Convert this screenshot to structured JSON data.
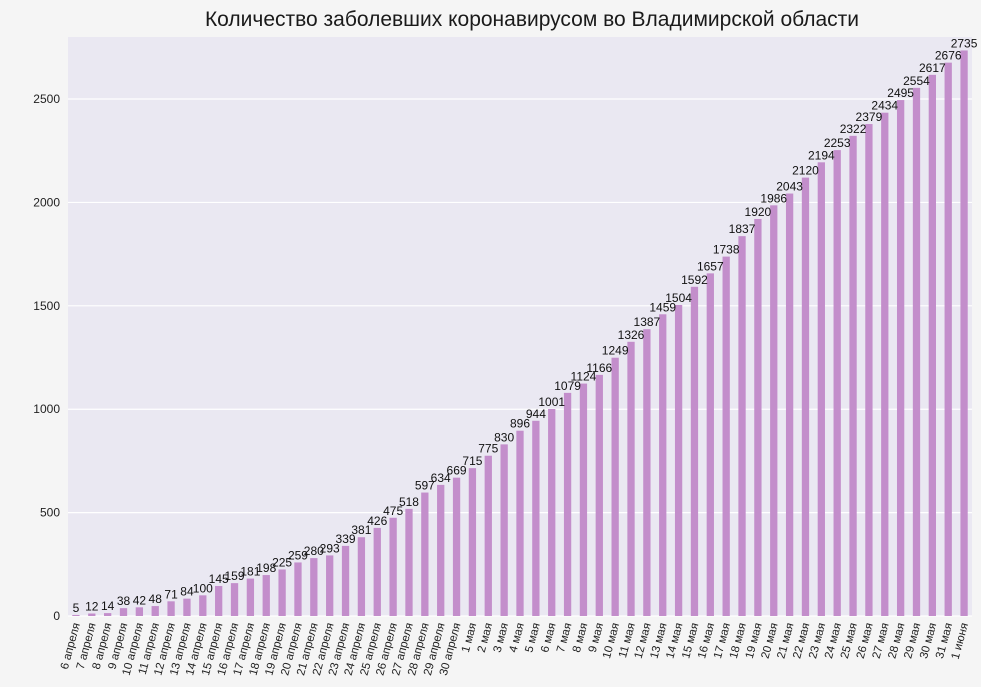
{
  "chart_data": {
    "type": "bar",
    "title": "Количество заболевших коронавирусом во Владимирской области",
    "xlabel": "",
    "ylabel": "",
    "ylim": [
      0,
      2800
    ],
    "yticks": [
      0,
      500,
      1000,
      1500,
      2000,
      2500
    ],
    "grid": true,
    "legend": "none",
    "bar_color": "#c38ecb",
    "background_color": "#eae8f2",
    "categories": [
      "6 апреля",
      "7 апреля",
      "8 апреля",
      "9 апреля",
      "10 апреля",
      "11 апреля",
      "12 апреля",
      "13 апреля",
      "14 апреля",
      "15 апреля",
      "16 апреля",
      "17 апреля",
      "18 апреля",
      "19 апреля",
      "20 апреля",
      "21 апреля",
      "22 апреля",
      "23 апреля",
      "24 апреля",
      "25 апреля",
      "26 апреля",
      "27 апреля",
      "28 апреля",
      "29 апреля",
      "30 апреля",
      "1 мая",
      "2 мая",
      "3 мая",
      "4 мая",
      "5 мая",
      "6 мая",
      "7 мая",
      "8 мая",
      "9 мая",
      "10 мая",
      "11 мая",
      "12 мая",
      "13 мая",
      "14 мая",
      "15 мая",
      "16 мая",
      "17 мая",
      "18 мая",
      "19 мая",
      "20 мая",
      "21 мая",
      "22 мая",
      "23 мая",
      "24 мая",
      "25 мая",
      "26 мая",
      "27 мая",
      "28 мая",
      "29 мая",
      "30 мая",
      "31 мая",
      "1 июня"
    ],
    "values": [
      5,
      12,
      14,
      38,
      42,
      48,
      71,
      84,
      100,
      145,
      159,
      181,
      198,
      225,
      259,
      280,
      293,
      339,
      381,
      426,
      475,
      518,
      597,
      634,
      669,
      715,
      775,
      830,
      896,
      944,
      1001,
      1079,
      1124,
      1166,
      1249,
      1326,
      1387,
      1459,
      1504,
      1592,
      1657,
      1738,
      1837,
      1920,
      1986,
      2043,
      2120,
      2194,
      2253,
      2322,
      2379,
      2434,
      2495,
      2554,
      2617,
      2676,
      2735
    ]
  }
}
